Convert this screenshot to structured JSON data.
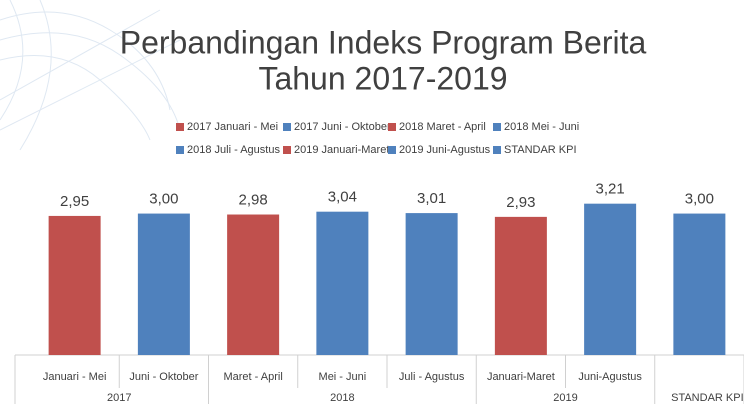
{
  "chart_data": {
    "type": "bar",
    "title": [
      "Perbandingan Indeks Program Berita",
      "Tahun 2017-2019"
    ],
    "groups": [
      {
        "label": "2017",
        "categories": [
          "Januari - Mei",
          "Juni - Oktober"
        ]
      },
      {
        "label": "2018",
        "categories": [
          "Maret - April",
          "Mei - Juni",
          "Juli - Agustus"
        ]
      },
      {
        "label": "2019",
        "categories": [
          "Januari-Maret",
          "Juni-Agustus"
        ]
      },
      {
        "label": "STANDAR KPI",
        "categories": [
          null
        ]
      }
    ],
    "series": [
      {
        "name": "2017 Januari - Mei",
        "color": "#c0504d",
        "values": [
          2.95
        ],
        "value_labels": [
          "2,95"
        ]
      },
      {
        "name": "2017 Juni - Oktober",
        "color": "#4f81bd",
        "values": [
          3.0
        ],
        "value_labels": [
          "3,00"
        ]
      },
      {
        "name": "2018 Maret - April",
        "color": "#c0504d",
        "values": [
          2.98
        ],
        "value_labels": [
          "2,98"
        ]
      },
      {
        "name": "2018 Mei - Juni",
        "color": "#4f81bd",
        "values": [
          3.04
        ],
        "value_labels": [
          "3,04"
        ]
      },
      {
        "name": "2018 Juli - Agustus",
        "color": "#4f81bd",
        "values": [
          3.01
        ],
        "value_labels": [
          "3,01"
        ]
      },
      {
        "name": "2019 Januari-Maret",
        "color": "#c0504d",
        "values": [
          2.93
        ],
        "value_labels": [
          "2,93"
        ]
      },
      {
        "name": "2019 Juni-Agustus",
        "color": "#4f81bd",
        "values": [
          3.21
        ],
        "value_labels": [
          "3,21"
        ]
      },
      {
        "name": "STANDAR KPI",
        "color": "#4f81bd",
        "values": [
          3.0
        ],
        "value_labels": [
          "3,00"
        ]
      }
    ],
    "ylim": [
      0,
      3.5
    ]
  }
}
